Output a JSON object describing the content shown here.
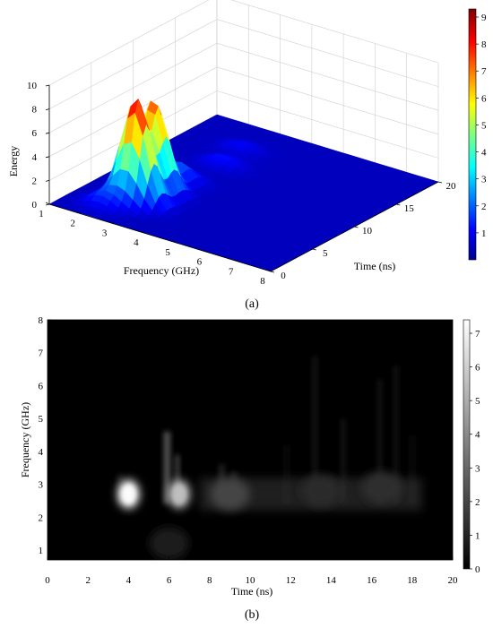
{
  "chart_data": [
    {
      "type": "surface",
      "panel_label": "(a)",
      "zlabel": "Energy",
      "xlabel": "Frequency (GHz)",
      "ylabel": "Time (ns)",
      "xlim": [
        1,
        8
      ],
      "ylim": [
        0,
        20
      ],
      "zlim": [
        0,
        10
      ],
      "x_ticks": [
        "1",
        "2",
        "3",
        "4",
        "5",
        "6",
        "7",
        "8"
      ],
      "y_ticks": [
        "0",
        "5",
        "10",
        "15",
        "20"
      ],
      "z_ticks": [
        "0",
        "2",
        "4",
        "6",
        "8",
        "10"
      ],
      "colorbar": {
        "range": [
          0,
          9.3
        ],
        "ticks": [
          "1",
          "2",
          "3",
          "4",
          "5",
          "6",
          "7",
          "8",
          "9"
        ],
        "colormap": "jet"
      },
      "peaks": [
        {
          "frequency": 2.7,
          "time": 4.0,
          "energy": 8.7
        },
        {
          "frequency": 2.6,
          "time": 6.4,
          "energy": 7.6
        },
        {
          "frequency": 2.7,
          "time": 9.0,
          "energy": 1.5
        },
        {
          "frequency": 3.0,
          "time": 13.0,
          "energy": 0.8
        },
        {
          "frequency": 2.8,
          "time": 16.0,
          "energy": 0.6
        },
        {
          "frequency": 2.2,
          "time": 2.0,
          "energy": 1.2
        }
      ],
      "grid": true
    },
    {
      "type": "heatmap",
      "panel_label": "(b)",
      "xlabel": "Time (ns)",
      "ylabel": "Frequency (GHz)",
      "xlim": [
        0,
        20
      ],
      "ylim": [
        0.7,
        8
      ],
      "x_ticks": [
        "0",
        "2",
        "4",
        "6",
        "8",
        "10",
        "12",
        "14",
        "16",
        "18",
        "20"
      ],
      "y_ticks": [
        "1",
        "2",
        "3",
        "4",
        "5",
        "6",
        "7",
        "8"
      ],
      "colorbar": {
        "range": [
          0,
          7.4
        ],
        "ticks": [
          "0",
          "1",
          "2",
          "3",
          "4",
          "5",
          "6",
          "7"
        ],
        "colormap": "gray"
      },
      "blobs": [
        {
          "time": 4.0,
          "frequency": 2.7,
          "value": 7.3
        },
        {
          "time": 6.5,
          "frequency": 2.7,
          "value": 5.5
        },
        {
          "time": 9.0,
          "frequency": 2.7,
          "value": 2.0
        },
        {
          "time": 13.5,
          "frequency": 2.8,
          "value": 1.2
        },
        {
          "time": 16.5,
          "frequency": 2.9,
          "value": 1.3
        },
        {
          "time": 6.0,
          "frequency": 1.2,
          "value": 0.8
        }
      ]
    }
  ]
}
